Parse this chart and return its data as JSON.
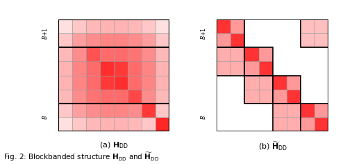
{
  "n": 8,
  "B": 2,
  "block_color_H": [
    [
      0.88,
      0.78,
      0.72,
      0.7,
      0.7,
      0.72,
      0.78,
      0.88
    ],
    [
      0.78,
      0.62,
      0.55,
      0.52,
      0.52,
      0.55,
      0.62,
      0.78
    ],
    [
      0.72,
      0.55,
      0.32,
      0.42,
      0.42,
      0.45,
      0.55,
      0.72
    ],
    [
      0.7,
      0.52,
      0.42,
      0.18,
      0.22,
      0.42,
      0.52,
      0.7
    ],
    [
      0.7,
      0.52,
      0.42,
      0.22,
      0.18,
      0.42,
      0.52,
      0.7
    ],
    [
      0.72,
      0.55,
      0.45,
      0.42,
      0.42,
      0.28,
      0.55,
      0.72
    ],
    [
      0.78,
      0.62,
      0.55,
      0.52,
      0.52,
      0.55,
      0.22,
      0.78
    ],
    [
      0.88,
      0.78,
      0.72,
      0.7,
      0.7,
      0.72,
      0.78,
      0.15
    ]
  ],
  "background": "white"
}
